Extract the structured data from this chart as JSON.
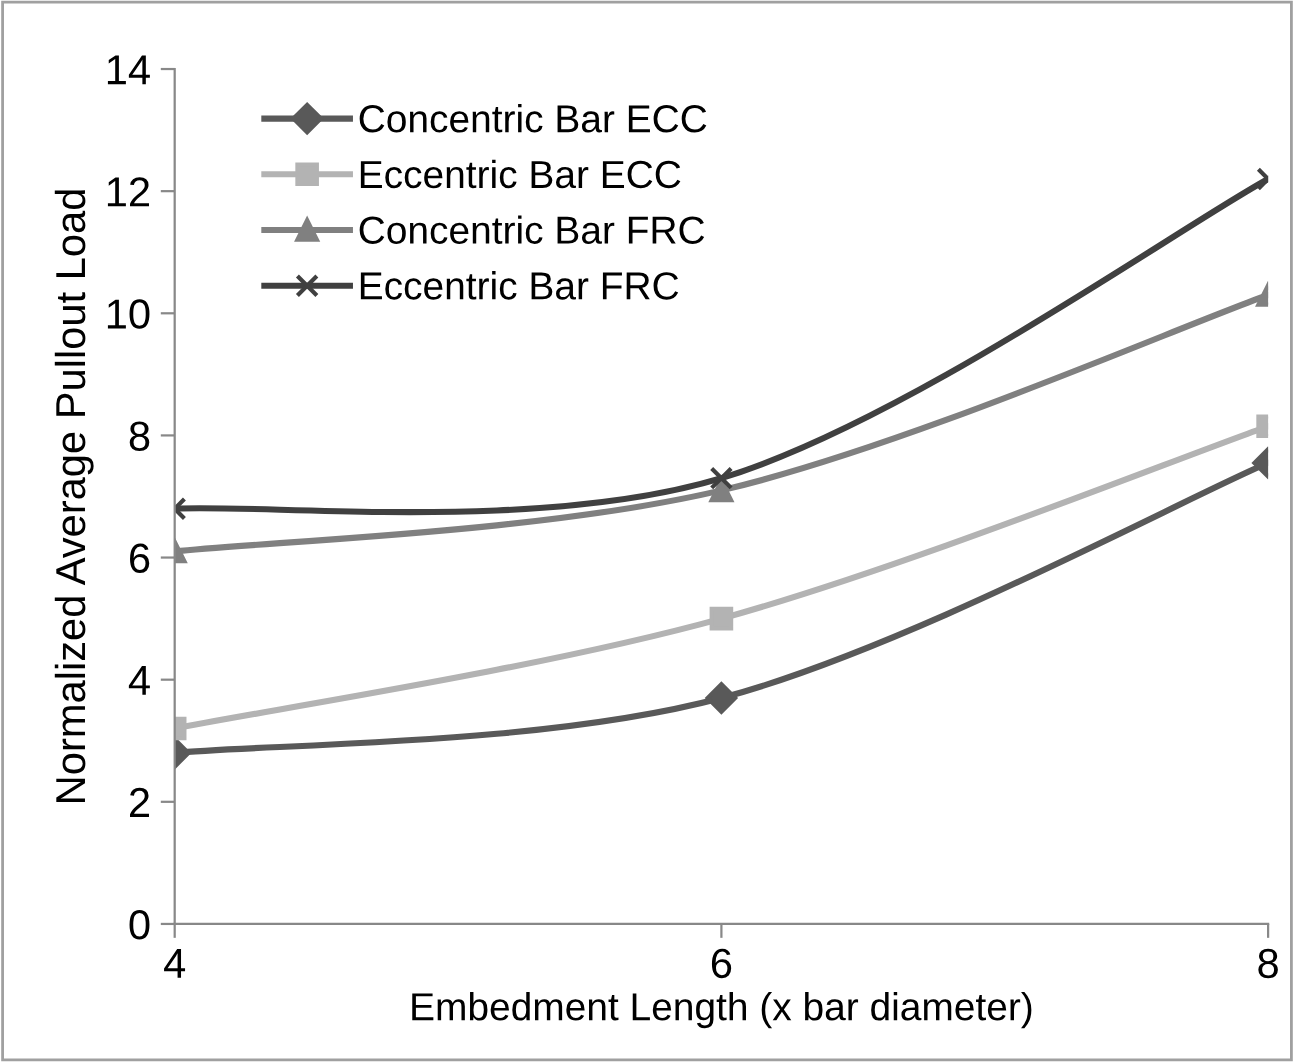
{
  "chart_data": {
    "type": "line",
    "xlabel": "Embedment Length (x bar diameter)",
    "ylabel": "Normalized Average Pullout Load",
    "x": [
      4,
      6,
      8
    ],
    "xlim": [
      4,
      8
    ],
    "xticks": [
      4,
      6,
      8
    ],
    "ylim": [
      0,
      14
    ],
    "yticks": [
      0,
      2,
      4,
      6,
      8,
      10,
      12,
      14
    ],
    "grid": false,
    "legend": "top left",
    "line_style": "solid",
    "series": [
      {
        "name": "Concentric Bar ECC",
        "color": "#595959",
        "marker": "diamond",
        "values": [
          2.8,
          3.7,
          7.55
        ]
      },
      {
        "name": "Eccentric Bar ECC",
        "color": "#b3b3b3",
        "marker": "square",
        "values": [
          3.2,
          5.0,
          8.15
        ]
      },
      {
        "name": "Concentric Bar FRC",
        "color": "#808080",
        "marker": "triangle",
        "values": [
          6.1,
          7.1,
          10.3
        ]
      },
      {
        "name": "Eccentric Bar FRC",
        "color": "#404040",
        "marker": "cross",
        "values": [
          6.8,
          7.3,
          12.2
        ]
      }
    ]
  }
}
